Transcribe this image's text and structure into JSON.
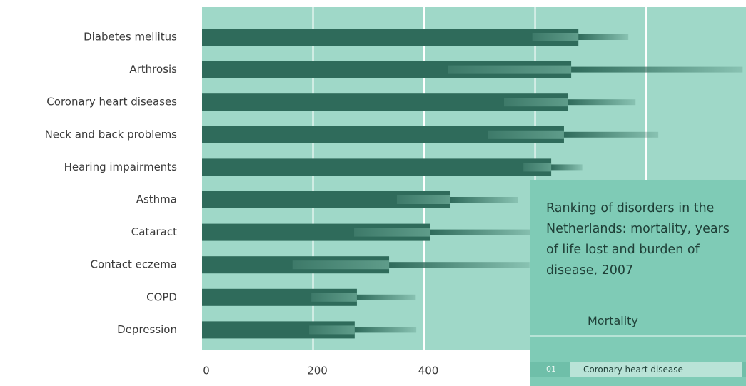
{
  "chart_data": {
    "type": "bar",
    "categories": [
      "Diabetes mellitus",
      "Arthrosis",
      "Coronary heart diseases",
      "Neck and back problems",
      "Hearing impairments",
      "Asthma",
      "Cataract",
      "Contact eczema",
      "COPD",
      "Depression"
    ],
    "values": [
      678,
      665,
      659,
      652,
      629,
      447,
      411,
      337,
      279,
      275
    ],
    "low": [
      595,
      443,
      544,
      515,
      579,
      351,
      274,
      163,
      197,
      193
    ],
    "high": [
      768,
      974,
      781,
      822,
      685,
      569,
      600,
      590,
      385,
      386
    ],
    "color": "#2f6b5b",
    "background": "#9fd8c8",
    "xlim": [
      0,
      980
    ],
    "xticks": [
      0,
      200,
      400,
      600,
      800
    ],
    "grid": true
  },
  "panel": {
    "title": "Ranking of disorders in the Netherlands: mortality, years of life lost and burden of disease, 2007",
    "subtitle": "Mortality",
    "row_number": "01",
    "row_label": "Coronary heart disease"
  }
}
